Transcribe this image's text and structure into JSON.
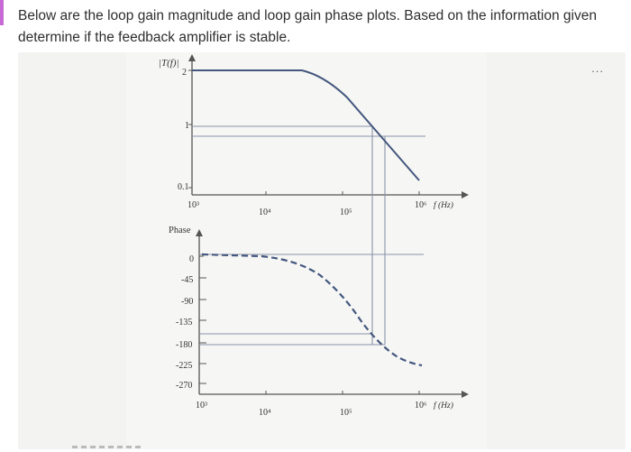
{
  "question": {
    "text": "Below are the loop gain magnitude and loop gain phase plots. Based on the information given determine if the feedback amplifier is stable."
  },
  "more_menu": {
    "icon": "more-horizontal-icon",
    "label": "..."
  },
  "magnitude_plot": {
    "ylabel": "|T(f)|",
    "yticks": [
      "2",
      "1",
      "0.1"
    ],
    "xticks": [
      "10³",
      "10⁴",
      "10⁵",
      "10⁶"
    ],
    "xunit": "f (Hz)"
  },
  "phase_plot": {
    "ylabel": "Phase",
    "yticks": [
      "0",
      "-45",
      "-90",
      "-135",
      "-180",
      "-225",
      "-270"
    ],
    "xticks": [
      "10³",
      "10⁴",
      "10⁵",
      "10⁶"
    ],
    "xunit": "f (Hz)"
  },
  "colors": {
    "curve": "#44577e",
    "grid": "#8a93a8",
    "axis": "#555555"
  }
}
